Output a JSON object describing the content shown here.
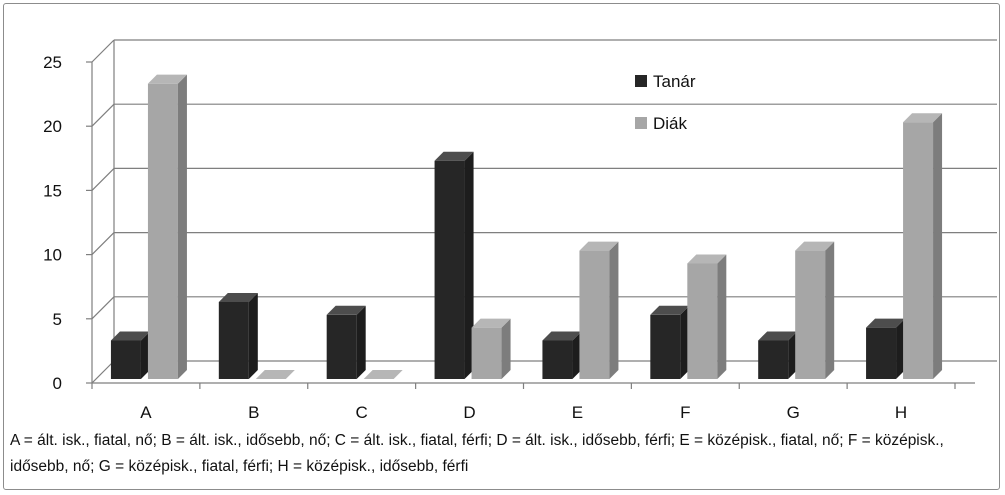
{
  "chart_data": {
    "type": "bar",
    "style": "3d-clustered-column",
    "categories": [
      "A",
      "B",
      "C",
      "D",
      "E",
      "F",
      "G",
      "H"
    ],
    "series": [
      {
        "name": "Tanár",
        "values": [
          3,
          6,
          5,
          17,
          3,
          5,
          3,
          4
        ],
        "color": "#262626"
      },
      {
        "name": "Diák",
        "values": [
          23,
          0,
          0,
          4,
          10,
          9,
          10,
          20
        ],
        "color": "#a6a6a6"
      }
    ],
    "y_ticks": [
      "0",
      "5",
      "10",
      "15",
      "20",
      "25"
    ],
    "ylim": [
      0,
      25
    ],
    "grid": true,
    "legend_position": "top-right"
  },
  "footnote": "A = ált. isk., fiatal, nő; B = ált. isk., idősebb, nő; C = ált. isk., fiatal, férfi; D = ált. isk., idősebb, férfi; E = középisk., fiatal, nő; F = középisk., idősebb, nő; G = középisk., fiatal, férfi; H = középisk., idősebb, férfi"
}
